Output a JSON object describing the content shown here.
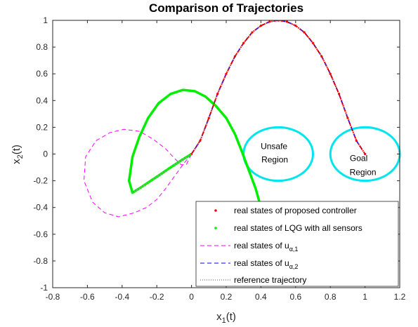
{
  "chart_data": {
    "type": "line",
    "title": "Comparison of Trajectories",
    "xlabel": "x",
    "xlabel_sub": "1",
    "xlabel_suffix": "(t)",
    "ylabel": "x",
    "ylabel_sub": "2",
    "ylabel_suffix": "(t)",
    "xlim": [
      -0.8,
      1.2
    ],
    "ylim": [
      -1,
      1
    ],
    "xticks": [
      "-0.8",
      "-0.6",
      "-0.4",
      "-0.2",
      "0",
      "0.2",
      "0.4",
      "0.6",
      "0.8",
      "1",
      "1.2"
    ],
    "yticks": [
      "-1",
      "-0.8",
      "-0.6",
      "-0.4",
      "-0.2",
      "0",
      "0.2",
      "0.4",
      "0.6",
      "0.8",
      "1"
    ],
    "grid": false,
    "legend_position": "bottom-right",
    "series": [
      {
        "name": "reference trajectory",
        "color": "#555555",
        "style": "dotted",
        "x": [
          0,
          0.05,
          0.1,
          0.15,
          0.2,
          0.25,
          0.3,
          0.35,
          0.4,
          0.45,
          0.5,
          0.55,
          0.6,
          0.65,
          0.7,
          0.75,
          0.8,
          0.85,
          0.9,
          0.95,
          1.0
        ],
        "y": [
          0,
          0.1,
          0.27,
          0.45,
          0.6,
          0.73,
          0.83,
          0.91,
          0.96,
          0.99,
          1.0,
          0.99,
          0.96,
          0.91,
          0.83,
          0.73,
          0.6,
          0.45,
          0.27,
          0.1,
          0
        ]
      },
      {
        "name": "real states of u",
        "sub": "α,2",
        "color": "#0000ff",
        "style": "dashed",
        "x": [
          0,
          0.05,
          0.1,
          0.15,
          0.2,
          0.25,
          0.3,
          0.35,
          0.4,
          0.45,
          0.5,
          0.55,
          0.6,
          0.65,
          0.7,
          0.75,
          0.8,
          0.85,
          0.9,
          0.95,
          1.0
        ],
        "y": [
          0,
          0.1,
          0.27,
          0.45,
          0.6,
          0.73,
          0.83,
          0.91,
          0.96,
          0.99,
          1.0,
          0.99,
          0.96,
          0.91,
          0.83,
          0.73,
          0.6,
          0.45,
          0.27,
          0.1,
          0
        ]
      },
      {
        "name": "real states of u",
        "sub": "α,1",
        "color": "#ff00ff",
        "style": "dashed",
        "x": [
          0,
          -0.05,
          -0.1,
          -0.15,
          -0.2,
          -0.26,
          -0.33,
          -0.42,
          -0.5,
          -0.57,
          -0.62,
          -0.61,
          -0.55,
          -0.47,
          -0.39,
          -0.3,
          -0.22,
          -0.15,
          -0.1,
          -0.06,
          -0.03,
          0
        ],
        "y": [
          0,
          -0.08,
          -0.17,
          -0.26,
          -0.34,
          -0.4,
          -0.44,
          -0.47,
          -0.44,
          -0.36,
          -0.2,
          -0.02,
          0.1,
          0.16,
          0.185,
          0.17,
          0.11,
          0.04,
          -0.03,
          -0.08,
          -0.08,
          0
        ]
      },
      {
        "name": "real states of LQG with all sensors",
        "color": "#00ee00",
        "style": "thick",
        "x": [
          0,
          -0.05,
          -0.12,
          -0.2,
          -0.28,
          -0.34,
          -0.36,
          -0.34,
          -0.3,
          -0.25,
          -0.19,
          -0.12,
          -0.05,
          0.02,
          0.08,
          0.14,
          0.2,
          0.25,
          0.29,
          0.33,
          0.37,
          0.4,
          0.44
        ],
        "y": [
          0,
          -0.04,
          -0.1,
          -0.17,
          -0.24,
          -0.29,
          -0.2,
          -0.02,
          0.13,
          0.27,
          0.38,
          0.45,
          0.48,
          0.47,
          0.43,
          0.36,
          0.27,
          0.15,
          0.02,
          -0.12,
          -0.26,
          -0.4,
          -0.55
        ]
      },
      {
        "name": "real states of proposed controller",
        "color": "#ff0000",
        "style": "dots",
        "x": [
          0,
          0.05,
          0.1,
          0.15,
          0.2,
          0.25,
          0.3,
          0.35,
          0.4,
          0.45,
          0.5,
          0.55,
          0.6,
          0.65,
          0.7,
          0.75,
          0.8,
          0.85,
          0.9,
          0.95,
          1.0
        ],
        "y": [
          0,
          0.1,
          0.27,
          0.45,
          0.6,
          0.73,
          0.83,
          0.91,
          0.96,
          0.99,
          1.0,
          0.99,
          0.96,
          0.91,
          0.83,
          0.73,
          0.6,
          0.45,
          0.27,
          0.1,
          0
        ]
      }
    ],
    "regions": [
      {
        "label_line1": "Unsafe",
        "label_line2": "Region",
        "cx": 0.5,
        "cy": 0,
        "rx": 0.2,
        "ry": 0.2,
        "color": "#00e5ee"
      },
      {
        "label_line1": "Goal",
        "label_line2": "Region",
        "cx": 1.0,
        "cy": 0,
        "rx": 0.2,
        "ry": 0.2,
        "color": "#00e5ee"
      }
    ]
  }
}
